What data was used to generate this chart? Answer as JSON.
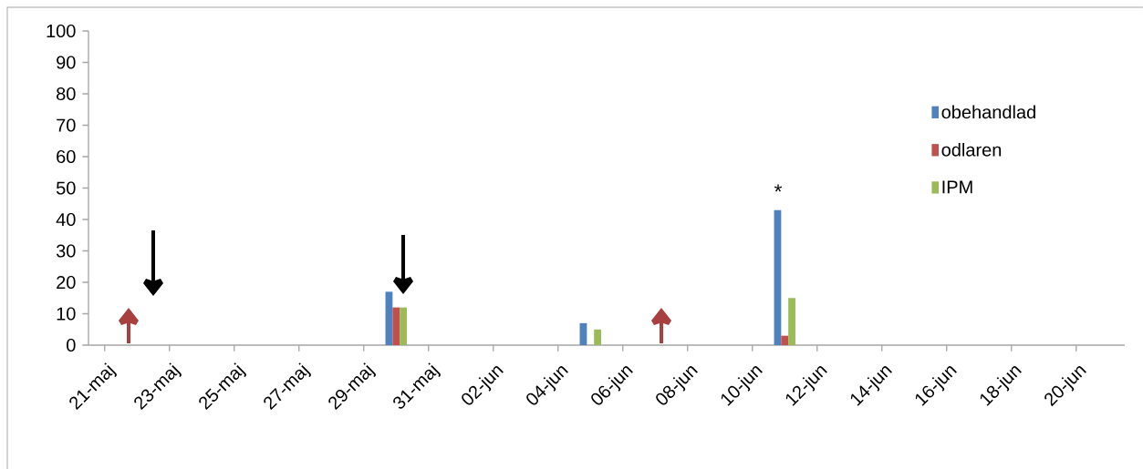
{
  "chart_data": {
    "type": "bar",
    "categories": [
      "21-maj",
      null,
      "23-maj",
      null,
      "25-maj",
      null,
      "27-maj",
      null,
      "29-maj",
      null,
      "31-maj",
      null,
      "02-jun",
      null,
      "04-jun",
      null,
      "06-jun",
      null,
      "08-jun",
      null,
      "10-jun",
      null,
      "12-jun",
      null,
      "14-jun",
      null,
      "16-jun",
      null,
      "18-jun",
      null,
      "20-jun",
      null
    ],
    "series": [
      {
        "name": "obehandlad",
        "color": "#4f81bd",
        "values": [
          null,
          null,
          null,
          null,
          null,
          null,
          null,
          null,
          null,
          17,
          null,
          null,
          null,
          null,
          null,
          7,
          null,
          null,
          null,
          null,
          null,
          43,
          null,
          null,
          null,
          null,
          null,
          null,
          null,
          null,
          null,
          null
        ]
      },
      {
        "name": "odlaren",
        "color": "#c0504d",
        "values": [
          null,
          null,
          null,
          null,
          null,
          null,
          null,
          null,
          null,
          12,
          null,
          null,
          null,
          null,
          null,
          null,
          null,
          null,
          null,
          null,
          null,
          3,
          null,
          null,
          null,
          null,
          null,
          null,
          null,
          null,
          null,
          null
        ]
      },
      {
        "name": "IPM",
        "color": "#9bbb59",
        "values": [
          null,
          null,
          null,
          null,
          null,
          null,
          null,
          null,
          null,
          12,
          null,
          null,
          null,
          null,
          null,
          5,
          null,
          null,
          null,
          null,
          null,
          15,
          null,
          null,
          null,
          null,
          null,
          null,
          null,
          null,
          null,
          null
        ]
      }
    ],
    "ylim": [
      0,
      100
    ],
    "yticks": [
      0,
      10,
      20,
      30,
      40,
      50,
      60,
      70,
      80,
      90,
      100
    ],
    "grid": false,
    "legend": "right",
    "annotations": [
      "*"
    ]
  }
}
